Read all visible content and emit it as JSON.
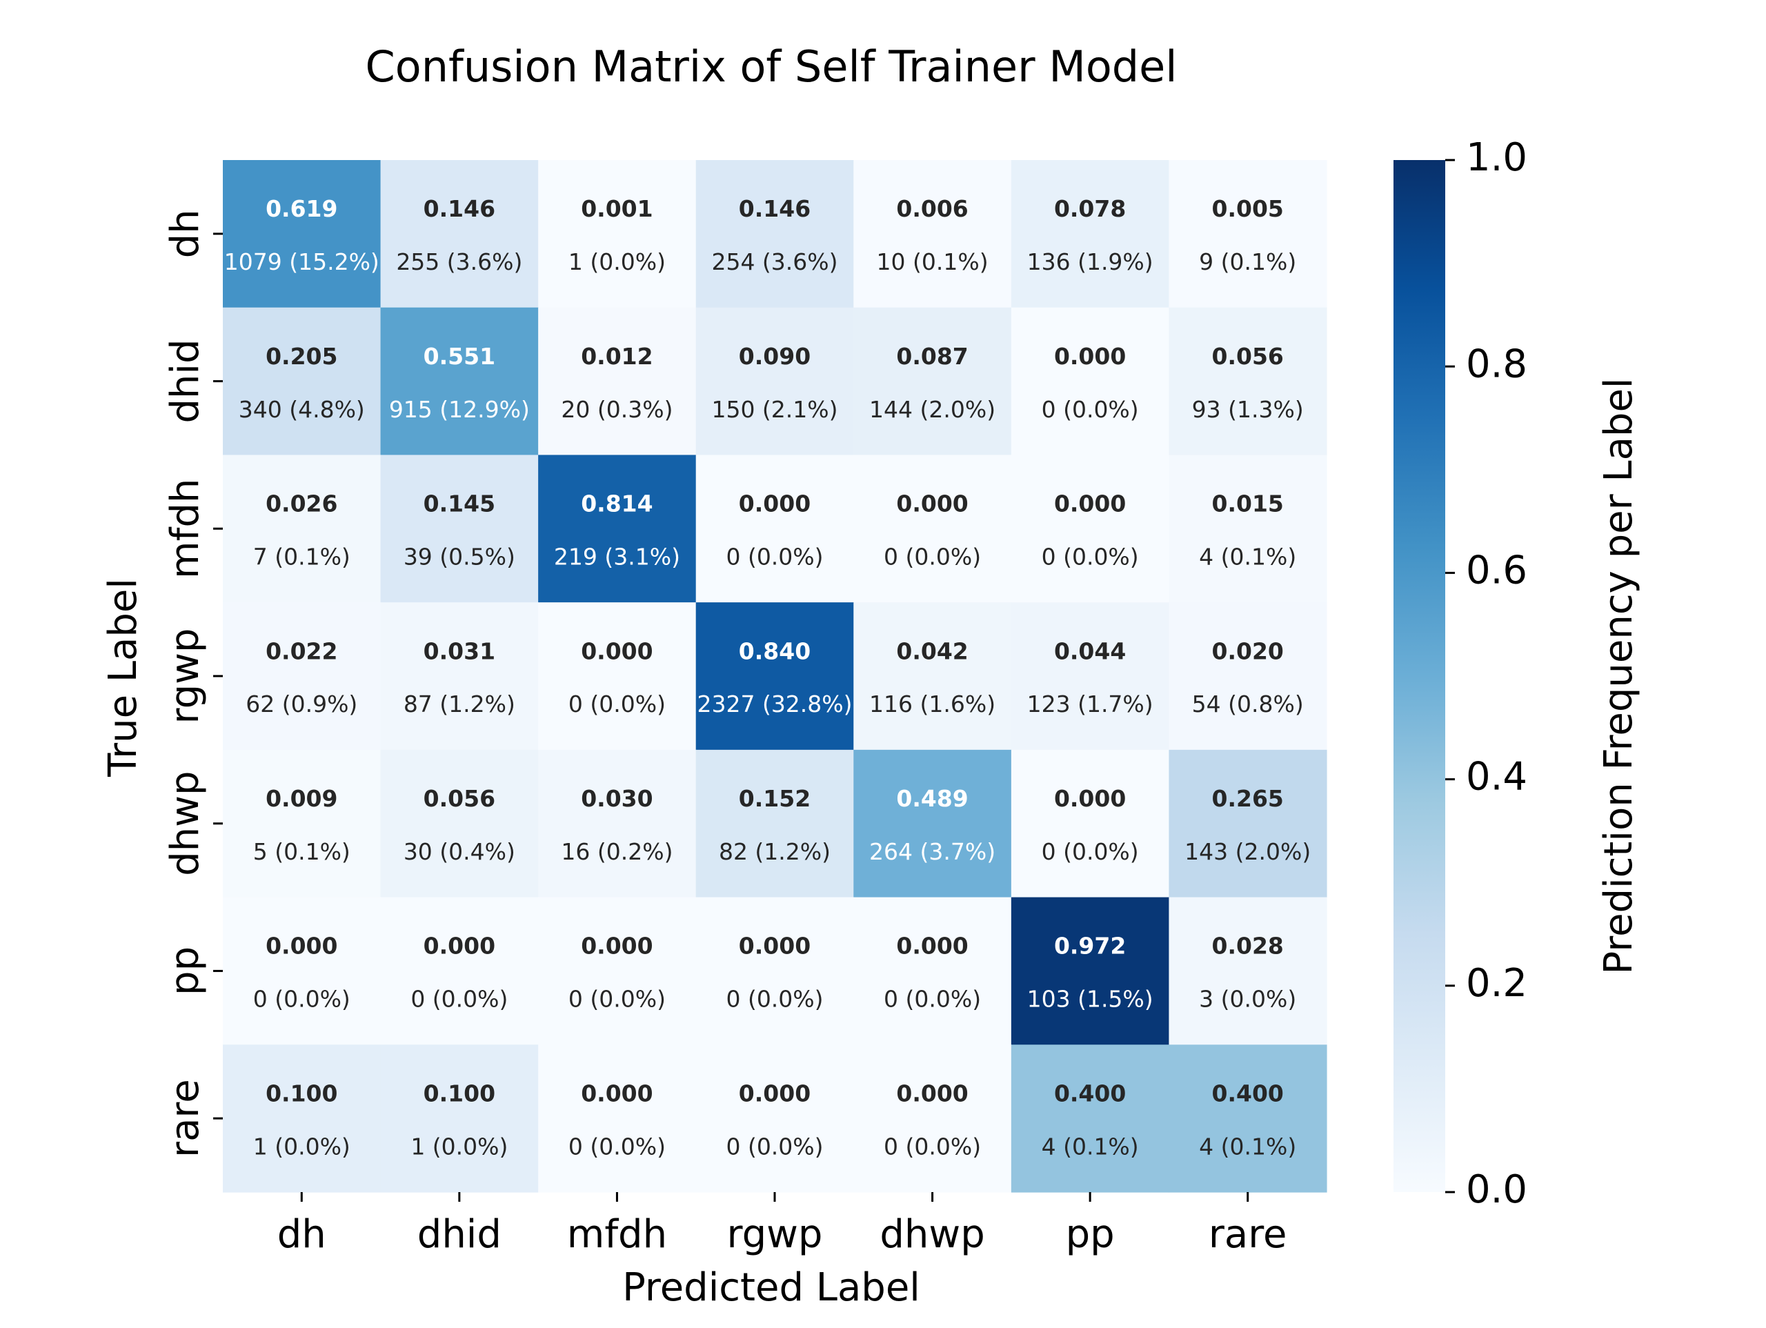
{
  "chart_data": {
    "type": "heatmap",
    "title": "Confusion Matrix of Self Trainer Model",
    "xlabel": "Predicted Label",
    "ylabel": "True Label",
    "x_categories": [
      "dh",
      "dhid",
      "mfdh",
      "rgwp",
      "dhwp",
      "pp",
      "rare"
    ],
    "y_categories": [
      "dh",
      "dhid",
      "mfdh",
      "rgwp",
      "dhwp",
      "pp",
      "rare"
    ],
    "values": [
      [
        0.619,
        0.146,
        0.001,
        0.146,
        0.006,
        0.078,
        0.005
      ],
      [
        0.205,
        0.551,
        0.012,
        0.09,
        0.087,
        0.0,
        0.056
      ],
      [
        0.026,
        0.145,
        0.814,
        0.0,
        0.0,
        0.0,
        0.015
      ],
      [
        0.022,
        0.031,
        0.0,
        0.84,
        0.042,
        0.044,
        0.02
      ],
      [
        0.009,
        0.056,
        0.03,
        0.152,
        0.489,
        0.0,
        0.265
      ],
      [
        0.0,
        0.0,
        0.0,
        0.0,
        0.0,
        0.972,
        0.028
      ],
      [
        0.1,
        0.1,
        0.0,
        0.0,
        0.0,
        0.4,
        0.4
      ]
    ],
    "proportion_labels": [
      [
        "0.619",
        "0.146",
        "0.001",
        "0.146",
        "0.006",
        "0.078",
        "0.005"
      ],
      [
        "0.205",
        "0.551",
        "0.012",
        "0.090",
        "0.087",
        "0.000",
        "0.056"
      ],
      [
        "0.026",
        "0.145",
        "0.814",
        "0.000",
        "0.000",
        "0.000",
        "0.015"
      ],
      [
        "0.022",
        "0.031",
        "0.000",
        "0.840",
        "0.042",
        "0.044",
        "0.020"
      ],
      [
        "0.009",
        "0.056",
        "0.030",
        "0.152",
        "0.489",
        "0.000",
        "0.265"
      ],
      [
        "0.000",
        "0.000",
        "0.000",
        "0.000",
        "0.000",
        "0.972",
        "0.028"
      ],
      [
        "0.100",
        "0.100",
        "0.000",
        "0.000",
        "0.000",
        "0.400",
        "0.400"
      ]
    ],
    "count_labels": [
      [
        "1079 (15.2%)",
        "255 (3.6%)",
        "1 (0.0%)",
        "254 (3.6%)",
        "10 (0.1%)",
        "136 (1.9%)",
        "9 (0.1%)"
      ],
      [
        "340 (4.8%)",
        "915 (12.9%)",
        "20 (0.3%)",
        "150 (2.1%)",
        "144 (2.0%)",
        "0 (0.0%)",
        "93 (1.3%)"
      ],
      [
        "7 (0.1%)",
        "39 (0.5%)",
        "219 (3.1%)",
        "0 (0.0%)",
        "0 (0.0%)",
        "0 (0.0%)",
        "4 (0.1%)"
      ],
      [
        "62 (0.9%)",
        "87 (1.2%)",
        "0 (0.0%)",
        "2327 (32.8%)",
        "116 (1.6%)",
        "123 (1.7%)",
        "54 (0.8%)"
      ],
      [
        "5 (0.1%)",
        "30 (0.4%)",
        "16 (0.2%)",
        "82 (1.2%)",
        "264 (3.7%)",
        "0 (0.0%)",
        "143 (2.0%)"
      ],
      [
        "0 (0.0%)",
        "0 (0.0%)",
        "0 (0.0%)",
        "0 (0.0%)",
        "0 (0.0%)",
        "103 (1.5%)",
        "3 (0.0%)"
      ],
      [
        "1 (0.0%)",
        "1 (0.0%)",
        "0 (0.0%)",
        "0 (0.0%)",
        "0 (0.0%)",
        "4 (0.1%)",
        "4 (0.1%)"
      ]
    ],
    "colorbar": {
      "label": "Prediction Frequency per Label",
      "range": [
        0.0,
        1.0
      ],
      "ticks": [
        0.0,
        0.2,
        0.4,
        0.6,
        0.8,
        1.0
      ],
      "tick_labels": [
        "0.0",
        "0.2",
        "0.4",
        "0.6",
        "0.8",
        "1.0"
      ],
      "colormap": "Blues",
      "colormap_stops": [
        "#f7fbff",
        "#deebf7",
        "#c6dbef",
        "#9ecae1",
        "#6baed6",
        "#4292c6",
        "#2171b5",
        "#08519c",
        "#08306b"
      ]
    },
    "text_colors": {
      "light": "#ffffff",
      "dark": "#262626"
    },
    "grid": false
  }
}
